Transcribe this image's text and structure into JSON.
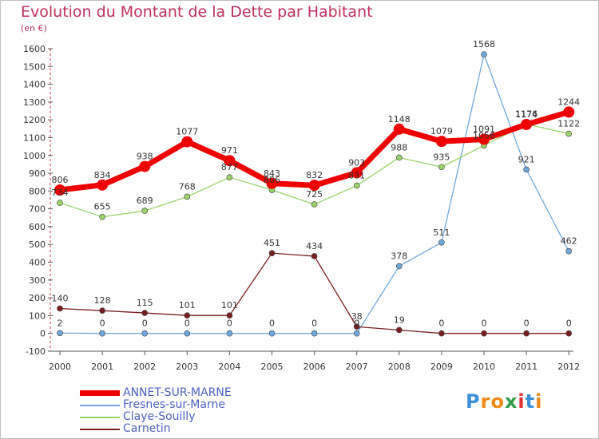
{
  "title": "Evolution du Montant de la Dette par Habitant",
  "subtitle": "(en €)",
  "logo": "Proxiti",
  "chart_data": {
    "type": "line",
    "x": [
      "2000",
      "2001",
      "2002",
      "2003",
      "2004",
      "2005",
      "2006",
      "2007",
      "2008",
      "2009",
      "2010",
      "2011",
      "2012"
    ],
    "ylim": [
      -100,
      1600
    ],
    "yticks": [
      -100,
      0,
      100,
      200,
      300,
      400,
      500,
      600,
      700,
      800,
      900,
      1000,
      1100,
      1200,
      1300,
      1400,
      1500,
      1600
    ],
    "grid": false,
    "legend_placement": "bottom-left",
    "series": [
      {
        "name": "ANNET-SUR-MARNE",
        "color": "#ee0000",
        "values": [
          806,
          834,
          938,
          1077,
          971,
          843,
          832,
          903,
          1148,
          1079,
          1091,
          1174,
          1244
        ]
      },
      {
        "name": "Fresnes-sur-Marne",
        "color": "#6fa8dc",
        "values": [
          2,
          0,
          0,
          0,
          0,
          0,
          0,
          0,
          378,
          511,
          1568,
          921,
          462
        ]
      },
      {
        "name": "Claye-Souilly",
        "color": "#9ad36b",
        "values": [
          734,
          655,
          689,
          768,
          877,
          806,
          725,
          831,
          988,
          935,
          1056,
          1176,
          1122
        ]
      },
      {
        "name": "Carnetin",
        "color": "#7a1f1f",
        "values": [
          140,
          128,
          115,
          101,
          101,
          451,
          434,
          38,
          19,
          0,
          0,
          0,
          0
        ]
      }
    ]
  }
}
